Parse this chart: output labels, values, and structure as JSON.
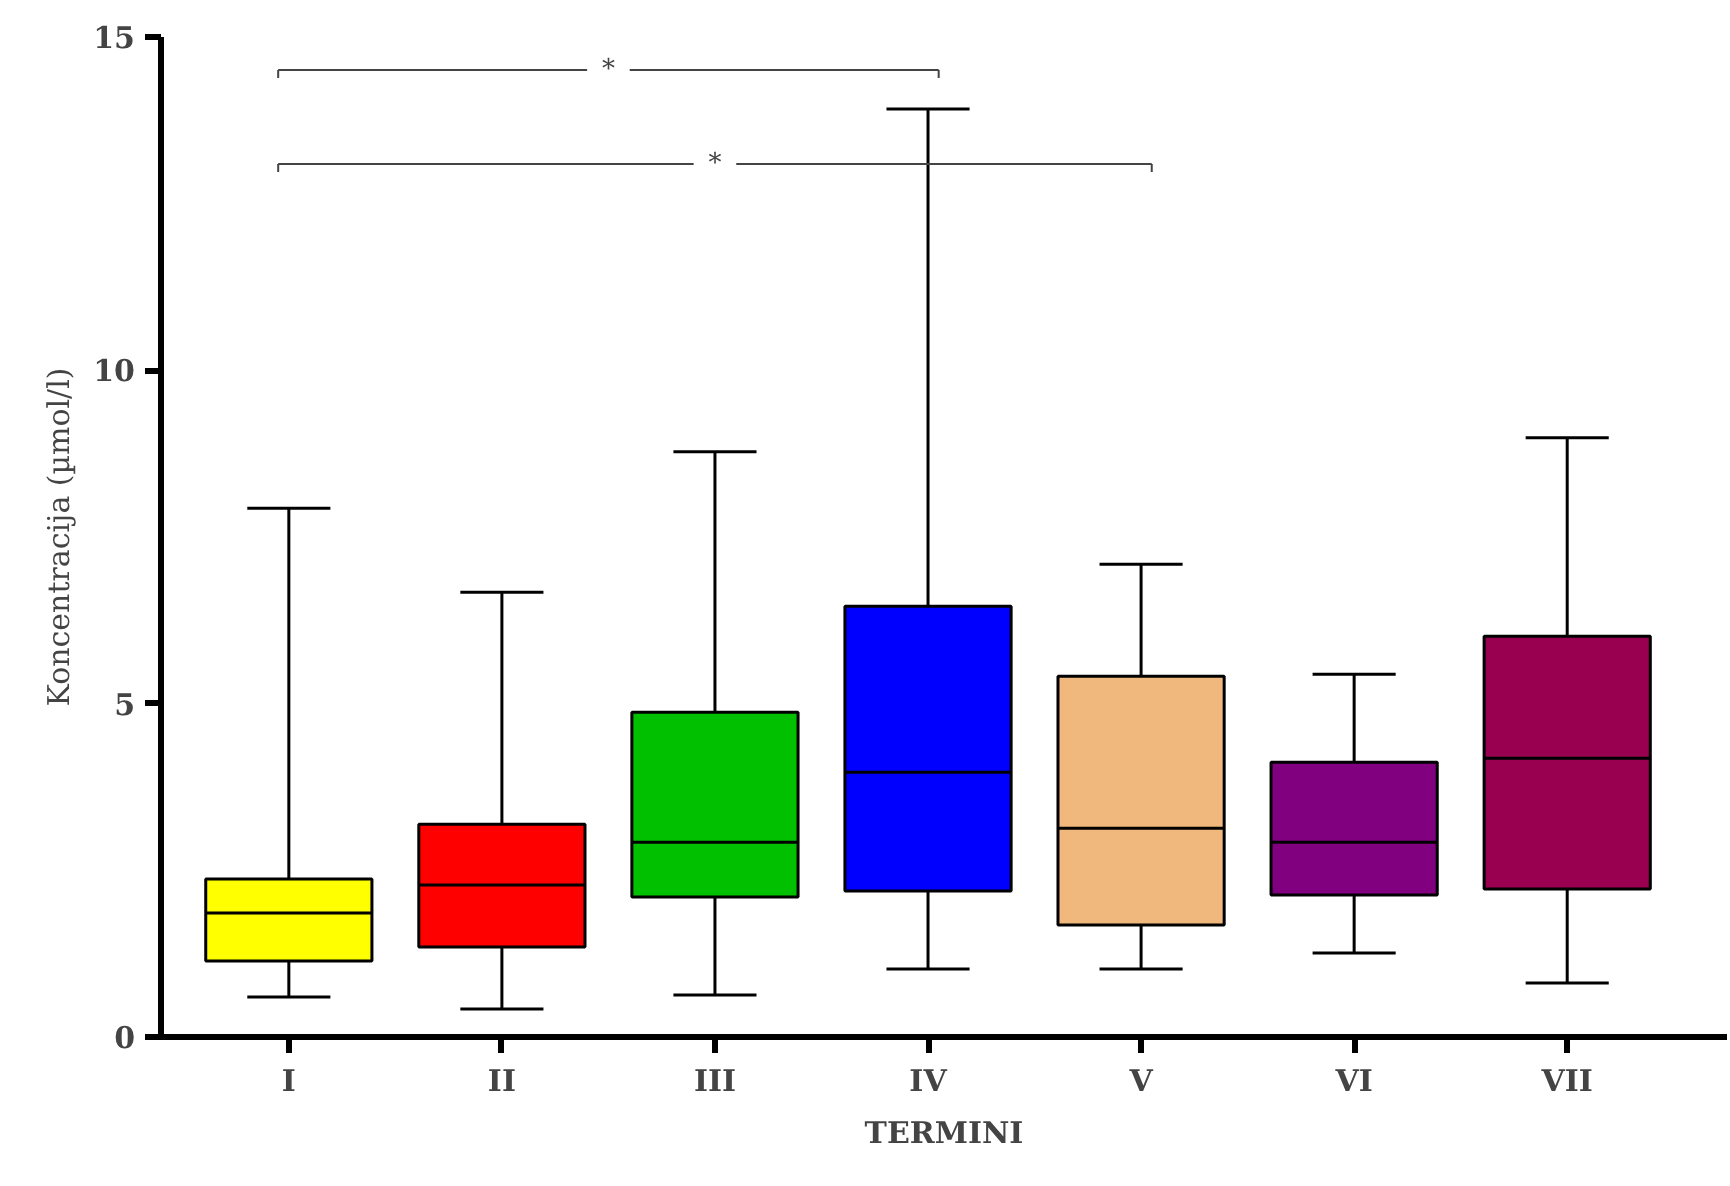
{
  "chart_data": {
    "type": "box",
    "xlabel": "TERMINI",
    "ylabel": "Koncentracija (µmol/l)",
    "categories": [
      "I",
      "II",
      "III",
      "IV",
      "V",
      "VI",
      "VII"
    ],
    "colors": [
      "#ffff00",
      "#ff0000",
      "#00c000",
      "#0000ff",
      "#f0b87c",
      "#800080",
      "#990050"
    ],
    "boxes": [
      {
        "low": 0.6,
        "q1": 1.14,
        "median": 1.86,
        "q3": 2.37,
        "high": 7.93
      },
      {
        "low": 0.42,
        "q1": 1.35,
        "median": 2.28,
        "q3": 3.19,
        "high": 6.67
      },
      {
        "low": 0.63,
        "q1": 2.1,
        "median": 2.92,
        "q3": 4.87,
        "high": 8.78
      },
      {
        "low": 1.02,
        "q1": 2.19,
        "median": 3.97,
        "q3": 6.46,
        "high": 13.92
      },
      {
        "low": 1.02,
        "q1": 1.68,
        "median": 3.13,
        "q3": 5.41,
        "high": 7.09
      },
      {
        "low": 1.26,
        "q1": 2.13,
        "median": 2.92,
        "q3": 4.12,
        "high": 5.44
      },
      {
        "low": 0.81,
        "q1": 2.22,
        "median": 4.18,
        "q3": 6.01,
        "high": 8.99
      }
    ],
    "ylim": [
      0,
      15
    ],
    "yticks": [
      0,
      5,
      10,
      15
    ],
    "grid": false,
    "annotations": [
      "*",
      "*"
    ]
  }
}
